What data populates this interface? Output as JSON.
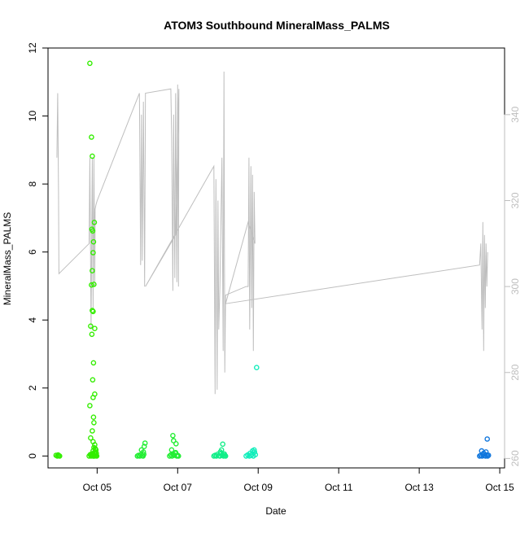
{
  "chart_data": {
    "type": "scatter",
    "title": "ATOM3 Southbound MineralMass_PALMS",
    "xlabel": "Date",
    "ylabel": "MineralMass_PALMS",
    "xlim": [
      3.78,
      15.12
    ],
    "ylim": [
      -0.35,
      12.0
    ],
    "y2lim": [
      257.8,
      355.5
    ],
    "x_ticks": [
      {
        "value": 5,
        "label": "Oct 05"
      },
      {
        "value": 7,
        "label": "Oct 07"
      },
      {
        "value": 9,
        "label": "Oct 09"
      },
      {
        "value": 11,
        "label": "Oct 11"
      },
      {
        "value": 13,
        "label": "Oct 13"
      },
      {
        "value": 15,
        "label": "Oct 15"
      }
    ],
    "y_ticks": [
      0,
      2,
      4,
      6,
      8,
      10,
      12
    ],
    "y2_ticks": [
      260,
      280,
      300,
      320,
      340
    ],
    "colors": {
      "axis": "#000000",
      "secondary_axis": "#bebebe",
      "secondary_line": "#bebebe"
    },
    "secondary_series": {
      "style": "line",
      "points": [
        [
          4.0,
          330
        ],
        [
          4.02,
          345
        ],
        [
          4.04,
          322
        ],
        [
          4.05,
          303
        ],
        [
          4.8,
          310
        ],
        [
          4.82,
          330
        ],
        [
          4.85,
          290
        ],
        [
          4.88,
          330
        ],
        [
          4.9,
          295
        ],
        [
          4.92,
          330
        ],
        [
          4.94,
          300
        ],
        [
          4.95,
          318
        ],
        [
          4.97,
          319
        ],
        [
          5.0,
          320
        ],
        [
          6.05,
          345
        ],
        [
          6.08,
          305
        ],
        [
          6.1,
          340
        ],
        [
          6.12,
          306
        ],
        [
          6.15,
          343
        ],
        [
          6.18,
          300
        ],
        [
          6.2,
          345
        ],
        [
          6.83,
          346
        ],
        [
          6.85,
          335
        ],
        [
          6.88,
          299
        ],
        [
          6.9,
          340
        ],
        [
          6.93,
          302
        ],
        [
          6.95,
          345
        ],
        [
          6.98,
          301
        ],
        [
          7.0,
          347
        ],
        [
          7.02,
          300
        ],
        [
          7.03,
          346
        ],
        [
          6.95,
          312
        ],
        [
          6.2,
          300
        ],
        [
          7.9,
          328
        ],
        [
          7.93,
          275
        ],
        [
          7.95,
          325
        ],
        [
          7.98,
          276
        ],
        [
          8.0,
          320
        ],
        [
          8.02,
          290
        ],
        [
          8.05,
          300
        ],
        [
          8.1,
          330
        ],
        [
          8.13,
          285
        ],
        [
          8.15,
          350
        ],
        [
          8.17,
          280
        ],
        [
          8.19,
          298
        ],
        [
          8.7,
          300
        ],
        [
          8.75,
          300
        ],
        [
          8.77,
          330
        ],
        [
          8.79,
          290
        ],
        [
          8.82,
          328
        ],
        [
          8.84,
          295
        ],
        [
          8.86,
          326
        ],
        [
          8.88,
          285
        ],
        [
          8.9,
          322
        ],
        [
          8.92,
          310
        ],
        [
          8.75,
          315
        ],
        [
          8.19,
          296
        ],
        [
          14.5,
          305
        ],
        [
          14.53,
          310
        ],
        [
          14.56,
          290
        ],
        [
          14.58,
          315
        ],
        [
          14.6,
          285
        ],
        [
          14.62,
          312
        ],
        [
          14.64,
          295
        ],
        [
          14.66,
          310
        ],
        [
          14.68,
          300
        ],
        [
          14.7,
          308
        ]
      ]
    },
    "series": [
      {
        "color": "#33ee00",
        "x": [
          3.98,
          4.01,
          4.03,
          4.05,
          4.07,
          4.82,
          4.86,
          4.88,
          4.93,
          4.87,
          4.89,
          4.91,
          4.9,
          4.88,
          4.92,
          4.86,
          4.88,
          4.9,
          4.94,
          4.84,
          4.87,
          4.91,
          4.89,
          4.94,
          4.9,
          4.82,
          4.91,
          4.92,
          4.88,
          4.84,
          4.9,
          4.94,
          4.92,
          4.96,
          4.9,
          4.95,
          4.98,
          4.85,
          4.88,
          4.92,
          4.96,
          4.8,
          4.85,
          4.9,
          4.94,
          4.99,
          4.87,
          4.93,
          4.97,
          4.95,
          4.83,
          4.89,
          4.98,
          4.91,
          4.86
        ],
        "y": [
          0.02,
          0.0,
          0.03,
          0.01,
          0.0,
          11.55,
          9.38,
          8.82,
          6.87,
          6.67,
          6.62,
          6.3,
          5.98,
          5.45,
          5.05,
          5.03,
          4.28,
          4.25,
          3.75,
          3.82,
          3.58,
          2.74,
          2.24,
          1.82,
          1.72,
          1.48,
          1.14,
          0.98,
          0.74,
          0.53,
          0.42,
          0.33,
          0.25,
          0.2,
          0.15,
          0.12,
          0.08,
          0.05,
          0.03,
          0.02,
          0.01,
          0.0,
          0.0,
          0.0,
          0.0,
          0.0,
          0.06,
          0.1,
          0.18,
          0.22,
          0.04,
          0.07,
          0.02,
          0.0,
          0.01
        ]
      },
      {
        "color": "#22ee33",
        "x": [
          6.0,
          6.03,
          6.06,
          6.09,
          6.12,
          6.15,
          6.17,
          6.19,
          6.1,
          6.16,
          6.14,
          6.8,
          6.83,
          6.86,
          6.89,
          6.92,
          6.95,
          6.98,
          7.0,
          7.02,
          6.85,
          6.9,
          6.96,
          6.88,
          6.94
        ],
        "y": [
          0.0,
          0.02,
          0.0,
          0.04,
          0.01,
          0.12,
          0.28,
          0.38,
          0.18,
          0.05,
          0.0,
          0.0,
          0.03,
          0.0,
          0.05,
          0.02,
          0.1,
          0.0,
          0.02,
          0.0,
          0.18,
          0.45,
          0.36,
          0.6,
          0.08
        ]
      },
      {
        "color": "#11ee88",
        "x": [
          7.9,
          7.93,
          7.96,
          7.99,
          8.02,
          8.05,
          8.08,
          8.11,
          8.14,
          8.17,
          8.19,
          8.06,
          8.09,
          8.12,
          8.16
        ],
        "y": [
          0.0,
          0.02,
          0.0,
          0.05,
          0.01,
          0.0,
          0.08,
          0.03,
          0.0,
          0.02,
          0.0,
          0.12,
          0.18,
          0.35,
          0.06
        ]
      },
      {
        "color": "#11eebb",
        "x": [
          8.7,
          8.74,
          8.78,
          8.82,
          8.85,
          8.88,
          8.91,
          8.93,
          8.8,
          8.86,
          8.9,
          8.96
        ],
        "y": [
          0.0,
          0.03,
          0.0,
          0.02,
          0.05,
          0.0,
          0.12,
          0.04,
          0.08,
          0.15,
          0.18,
          2.6
        ]
      },
      {
        "color": "#1177dd",
        "x": [
          14.5,
          14.53,
          14.56,
          14.59,
          14.62,
          14.65,
          14.68,
          14.7,
          14.72,
          14.55,
          14.6,
          14.66,
          14.69
        ],
        "y": [
          0.0,
          0.02,
          0.0,
          0.04,
          0.01,
          0.0,
          0.03,
          0.0,
          0.02,
          0.15,
          0.08,
          0.12,
          0.5
        ]
      }
    ]
  }
}
